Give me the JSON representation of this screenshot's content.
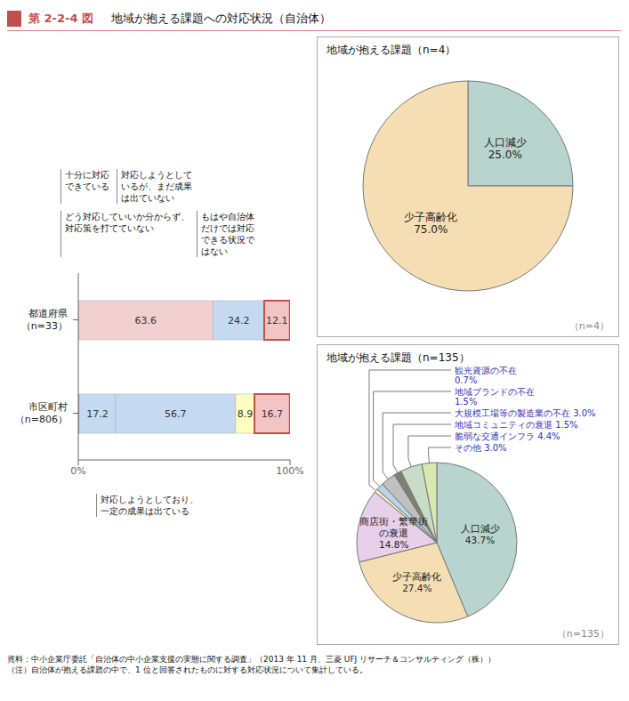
{
  "title": "第 2-2-4 図",
  "subtitle": "地域が抱える課題への対応状況（自治体）",
  "annotations": [
    "資料：中小企業庁委託「自治体の中小企業支援の実態に関する調査」（2013 年 11 月、三菱 UFJ リサーチ＆コンサルティング（株））",
    "（注）自治体が抱える課題の中で、1 位と回答されたものに対する対応状況について集計している。"
  ],
  "chart_data": [
    {
      "type": "bar",
      "orientation": "horizontal",
      "stacked": true,
      "grid": false,
      "data_labels": true,
      "categories": [
        "都道府県\n（n=33）",
        "市区町村\n（n=806）"
      ],
      "series": [
        {
          "colors": [
            "#c0504d",
            "#c0504d"
          ],
          "values": [
            0.0,
            0.4
          ],
          "value_labels": [
            null,
            null
          ]
        },
        {
          "colors": [
            "#f2d0d0",
            "#c5d9f1"
          ],
          "values": [
            63.6,
            17.2
          ],
          "value_labels": [
            "63.6",
            "17.2"
          ]
        },
        {
          "colors": [
            "#c5d9f1",
            "#c5d9f1"
          ],
          "values": [
            24.2,
            56.7
          ],
          "value_labels": [
            "24.2",
            "56.7"
          ]
        },
        {
          "colors": [
            "#c0504d",
            "#ffffc0"
          ],
          "values": [
            0.0,
            8.9
          ],
          "value_labels": [
            null,
            "8.9"
          ]
        },
        {
          "colors": [
            "#f2c4c4",
            "#f2c4c4"
          ],
          "values": [
            12.1,
            16.7
          ],
          "value_labels": [
            "12.1",
            "16.7"
          ]
        }
      ],
      "xlim": [
        0,
        100
      ],
      "xticks": [
        {
          "value": 0,
          "label": "0%"
        },
        {
          "value": 100,
          "label": "100%"
        }
      ],
      "annotations": [
        "十分に対応\nできている",
        "対応しようとして\nいるが、まだ成果\nは出ていない",
        "どう対応していいか分からず、\n対応策を打てていない",
        "もはや自治体\nだけでは対応\nできる状況で\nはない",
        "対応しようとしており、\n一定の成果は出ている"
      ]
    },
    {
      "type": "pie",
      "title": "地域が抱える課題（n=4）",
      "values": [
        25.0,
        75.0
      ],
      "value_labels": [
        "人口減少\n25.0%",
        "少子高齢化\n75.0%"
      ],
      "colors": [
        "#b8d4ce",
        "#f5deb3"
      ],
      "annotations": [
        "（n=4）"
      ]
    },
    {
      "type": "pie",
      "title": "地域が抱える課題（n=135）",
      "values": [
        43.7,
        27.4,
        14.8,
        0.7,
        1.5,
        3.0,
        1.5,
        4.4,
        3.0
      ],
      "value_labels": [
        "人口減少\n43.7%",
        "少子高齢化\n27.4%",
        "商店街・繁華街\nの衰退\n14.8%",
        "観光資源の不在\n0.7%",
        "地域ブランドの不在\n1.5%",
        "大規模工場等の製造業の不在 3.0%",
        "地域コミュニティの衰退 1.5%",
        "脆弱な交通インフラ 4.4%",
        "その他 3.0%"
      ],
      "colors": [
        "#b8d4ce",
        "#f5deb3",
        "#e8d0ea",
        "#f5f0c0",
        "#b8d4e8",
        "#c0c0c0",
        "#808070",
        "#c8dcc8",
        "#d8e8b0"
      ],
      "annotations": [
        "（n=135）"
      ]
    }
  ]
}
